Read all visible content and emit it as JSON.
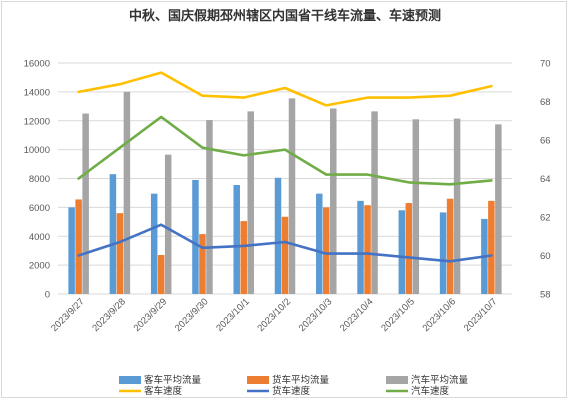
{
  "chart_data": {
    "type": "bar",
    "title": "中秋、国庆假期邳州辖区内国省干线车流量、车速预测",
    "categories": [
      "2023/9/27",
      "2023/9/28",
      "2023/9/29",
      "2023/9/30",
      "2023/10/1",
      "2023/10/2",
      "2023/10/3",
      "2023/10/4",
      "2023/10/5",
      "2023/10/6",
      "2023/10/7"
    ],
    "y_left": {
      "ylim": [
        0,
        16000
      ],
      "ticks": [
        "0",
        "2000",
        "4000",
        "6000",
        "8000",
        "10000",
        "12000",
        "14000",
        "16000"
      ]
    },
    "y_right": {
      "ylim": [
        58,
        70
      ],
      "ticks": [
        "58",
        "60",
        "62",
        "64",
        "66",
        "68",
        "70"
      ]
    },
    "grid": true,
    "legend_position": "bottom",
    "bar_series": [
      {
        "name": "客车平均流量",
        "color": "#5b9bd5",
        "values": [
          6000,
          8300,
          6950,
          7900,
          7550,
          8050,
          6950,
          6450,
          5800,
          5650,
          5200
        ]
      },
      {
        "name": "货车平均流量",
        "color": "#ed7d31",
        "values": [
          6550,
          5600,
          2700,
          4150,
          5050,
          5350,
          6000,
          6150,
          6300,
          6600,
          6450
        ]
      },
      {
        "name": "汽车平均流量",
        "color": "#a5a5a5",
        "values": [
          12500,
          14000,
          9650,
          12050,
          12650,
          13550,
          12850,
          12650,
          12100,
          12150,
          11750
        ]
      }
    ],
    "line_series": [
      {
        "name": "客车速度",
        "color": "#ffc000",
        "values": [
          68.5,
          68.9,
          69.5,
          68.3,
          68.2,
          68.7,
          67.8,
          68.2,
          68.2,
          68.3,
          68.8
        ]
      },
      {
        "name": "货车速度",
        "color": "#4472c4",
        "values": [
          60.0,
          60.7,
          61.6,
          60.4,
          60.5,
          60.7,
          60.1,
          60.1,
          59.9,
          59.7,
          60.0
        ]
      },
      {
        "name": "汽车速度",
        "color": "#70ad47",
        "values": [
          64.0,
          65.6,
          67.2,
          65.6,
          65.2,
          65.5,
          64.2,
          64.2,
          63.8,
          63.7,
          63.9
        ]
      }
    ]
  }
}
